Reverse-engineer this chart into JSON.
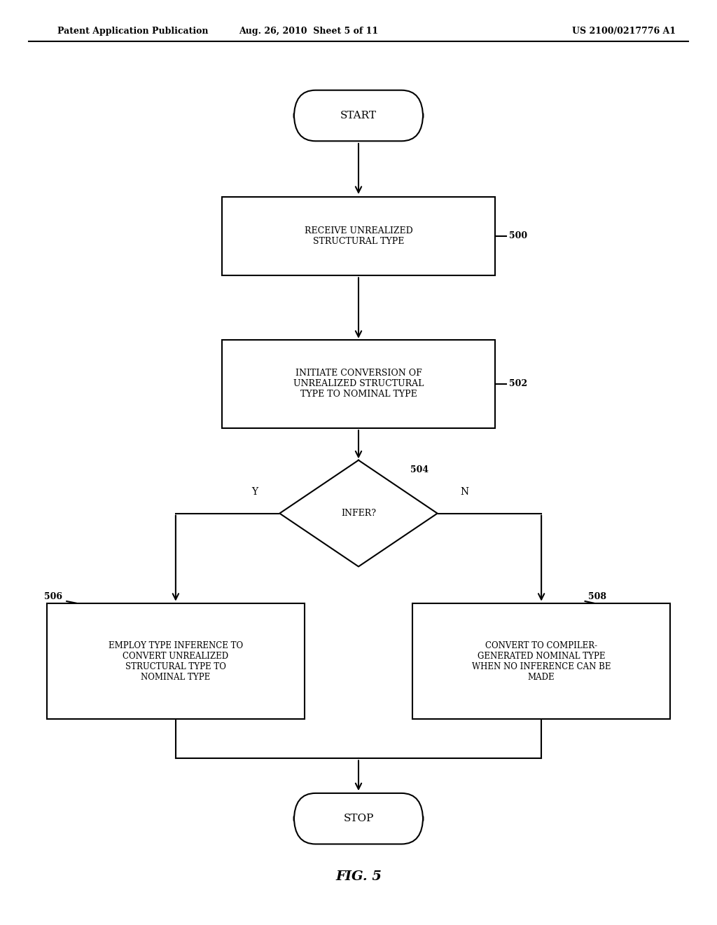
{
  "bg_color": "#ffffff",
  "header_left": "Patent Application Publication",
  "header_center": "Aug. 26, 2010  Sheet 5 of 11",
  "header_right": "US 2100/0217776 A1",
  "fig_label": "FIG. 5",
  "line_color": "#000000",
  "text_color": "#000000",
  "font_size_box": 9,
  "font_size_header": 9,
  "font_size_label": 10
}
